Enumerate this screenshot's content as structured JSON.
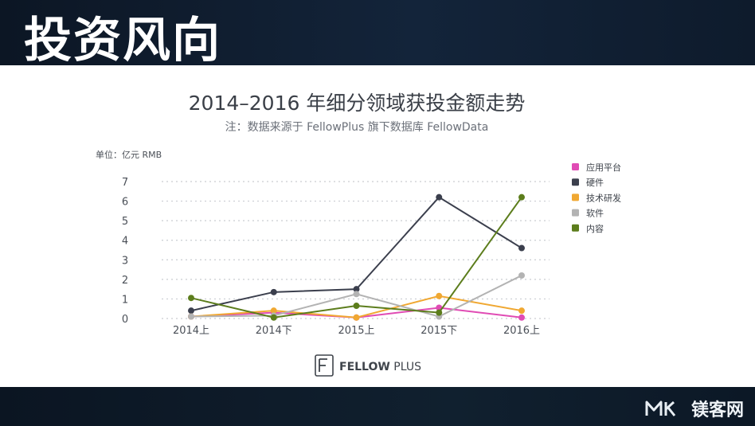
{
  "slide": {
    "title": "投资风向"
  },
  "brand": {
    "name": "镁客网",
    "mark": "MK"
  },
  "fellow_logo": {
    "bold": "FELLOW",
    "light": " PLUS"
  },
  "colors": {
    "应用平台": "#e04bb4",
    "硬件": "#3b3f4d",
    "技术研发": "#f0a832",
    "软件": "#b3b3b3",
    "内容": "#5c7d1c"
  },
  "chart_data": {
    "type": "line",
    "title": "2014–2016 年细分领域获投金额走势",
    "subtitle": "注：数据来源于 FellowPlus 旗下数据库 FellowData",
    "ylabel": "单位：亿元 RMB",
    "xlabel": "",
    "categories": [
      "2014上",
      "2014下",
      "2015上",
      "2015下",
      "2016上"
    ],
    "ylim": [
      0,
      7
    ],
    "yticks": [
      0,
      1,
      2,
      3,
      4,
      5,
      6,
      7
    ],
    "grid": "horizontal-dotted",
    "legend_position": "right",
    "series": [
      {
        "name": "应用平台",
        "values": [
          0.1,
          0.3,
          0.05,
          0.55,
          0.05
        ]
      },
      {
        "name": "硬件",
        "values": [
          0.4,
          1.35,
          1.5,
          6.2,
          3.6
        ]
      },
      {
        "name": "技术研发",
        "values": [
          0.1,
          0.4,
          0.05,
          1.15,
          0.4
        ]
      },
      {
        "name": "软件",
        "values": [
          0.1,
          0.15,
          1.25,
          0.1,
          2.2
        ]
      },
      {
        "name": "内容",
        "values": [
          1.05,
          0.05,
          0.65,
          0.3,
          6.2
        ]
      }
    ]
  }
}
